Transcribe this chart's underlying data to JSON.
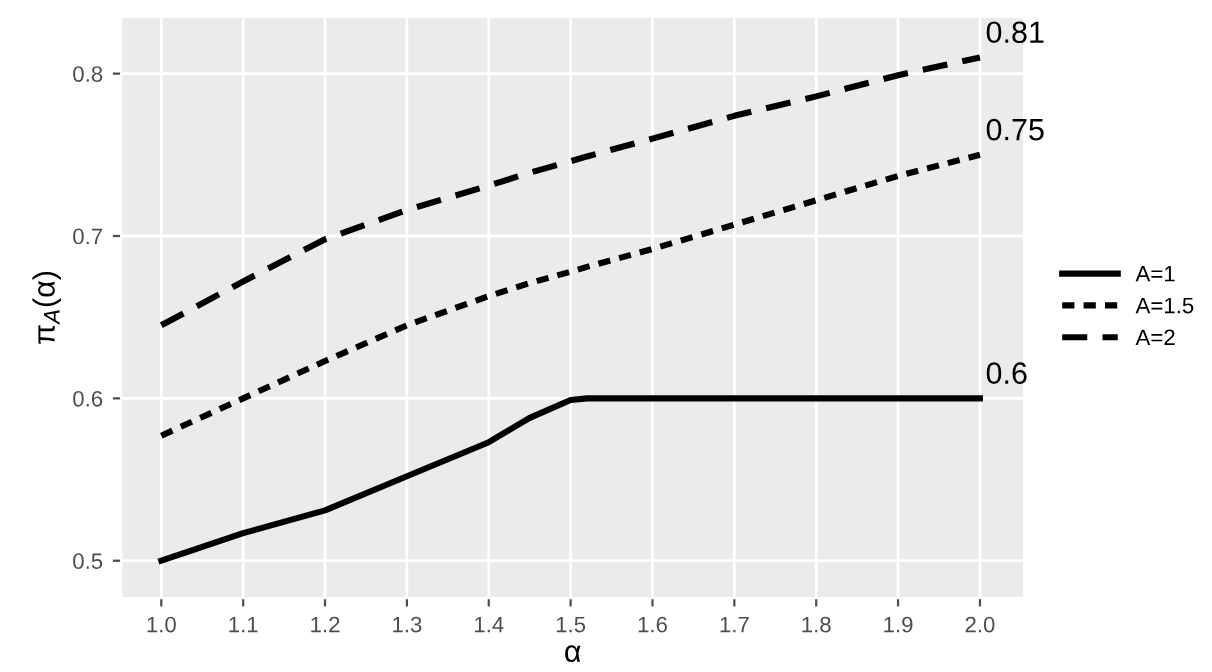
{
  "chart_data": {
    "type": "line",
    "xlabel": "α",
    "ylabel": "π$_{A}$(α)",
    "x": [
      1.0,
      1.1,
      1.2,
      1.3,
      1.4,
      1.45,
      1.5,
      1.52,
      1.6,
      1.7,
      1.8,
      1.9,
      2.0
    ],
    "series": [
      {
        "name": "A=1",
        "color": "#000000",
        "line_style": "solid",
        "values": [
          0.5,
          0.517,
          0.531,
          0.552,
          0.573,
          0.588,
          0.599,
          0.6,
          0.6,
          0.6,
          0.6,
          0.6,
          0.6
        ],
        "value_labels": [
          null,
          null,
          null,
          null,
          null,
          null,
          null,
          null,
          null,
          null,
          null,
          null,
          "0.6"
        ]
      },
      {
        "name": "A=1.5",
        "color": "#000000",
        "line_style": "dotted",
        "values": [
          0.577,
          0.6,
          0.623,
          0.645,
          0.663,
          0.671,
          0.678,
          0.681,
          0.692,
          0.707,
          0.722,
          0.737,
          0.75
        ],
        "value_labels": [
          null,
          null,
          null,
          null,
          null,
          null,
          null,
          null,
          null,
          null,
          null,
          null,
          "0.75"
        ]
      },
      {
        "name": "A=2",
        "color": "#000000",
        "line_style": "dashed",
        "values": [
          0.645,
          0.672,
          0.698,
          0.716,
          0.731,
          0.739,
          0.746,
          0.749,
          0.76,
          0.774,
          0.786,
          0.799,
          0.81
        ],
        "value_labels": [
          null,
          null,
          null,
          null,
          null,
          null,
          null,
          null,
          null,
          null,
          null,
          null,
          "0.81"
        ]
      }
    ],
    "xlim": [
      0.951,
      2.054
    ],
    "ylim": [
      0.477,
      0.835
    ],
    "xticks": [
      {
        "value": 1.0,
        "label": "1.0"
      },
      1.1,
      1.2,
      1.3,
      1.4,
      1.5,
      1.6,
      1.7,
      1.8,
      1.9,
      {
        "value": 2.0,
        "label": "2.0"
      }
    ],
    "yticks": [
      0.5,
      0.6,
      0.7,
      0.8
    ],
    "grid": true,
    "legend": "right",
    "marker": "none"
  }
}
